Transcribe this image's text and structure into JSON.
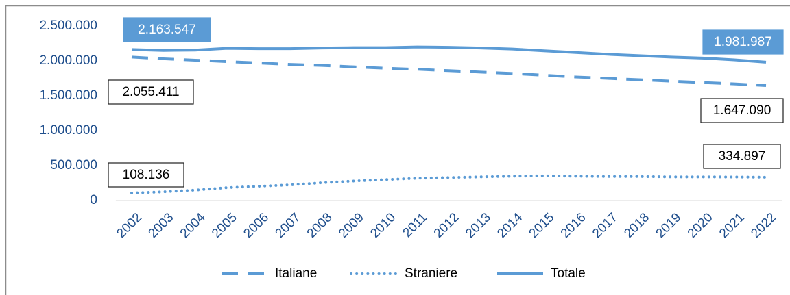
{
  "chart_data": {
    "type": "line",
    "categories": [
      "2002",
      "2003",
      "2004",
      "2005",
      "2006",
      "2007",
      "2008",
      "2009",
      "2010",
      "2011",
      "2012",
      "2013",
      "2014",
      "2015",
      "2016",
      "2017",
      "2018",
      "2019",
      "2020",
      "2021",
      "2022"
    ],
    "series": [
      {
        "name": "Italiane",
        "color": "#5b9bd5",
        "dash": "dashed",
        "values": [
          2055411,
          2030000,
          2010000,
          1990000,
          1970000,
          1950000,
          1935000,
          1915000,
          1895000,
          1880000,
          1860000,
          1840000,
          1820000,
          1795000,
          1770000,
          1750000,
          1730000,
          1710000,
          1690000,
          1670000,
          1647090
        ],
        "value_labels": [
          "2.055.411",
          null,
          null,
          null,
          null,
          null,
          null,
          null,
          null,
          null,
          null,
          null,
          null,
          null,
          null,
          null,
          null,
          null,
          null,
          null,
          "1.647.090"
        ]
      },
      {
        "name": "Straniere",
        "color": "#5b9bd5",
        "dash": "dotted",
        "values": [
          108136,
          125000,
          150000,
          185000,
          205000,
          225000,
          255000,
          280000,
          300000,
          320000,
          330000,
          340000,
          350000,
          355000,
          350000,
          345000,
          345000,
          340000,
          340000,
          338000,
          334897
        ],
        "value_labels": [
          "108.136",
          null,
          null,
          null,
          null,
          null,
          null,
          null,
          null,
          null,
          null,
          null,
          null,
          null,
          null,
          null,
          null,
          null,
          null,
          null,
          "334.897"
        ]
      },
      {
        "name": "Totale",
        "color": "#5b9bd5",
        "dash": "solid",
        "values": [
          2163547,
          2150000,
          2155000,
          2180000,
          2175000,
          2175000,
          2185000,
          2190000,
          2190000,
          2200000,
          2195000,
          2185000,
          2170000,
          2145000,
          2120000,
          2095000,
          2075000,
          2055000,
          2040000,
          2015000,
          1981987
        ],
        "value_labels": [
          "2.163.547",
          null,
          null,
          null,
          null,
          null,
          null,
          null,
          null,
          null,
          null,
          null,
          null,
          null,
          null,
          null,
          null,
          null,
          null,
          null,
          "1.981.987"
        ]
      }
    ],
    "ylim": [
      0,
      2500000
    ],
    "yticks": [
      0,
      {
        "value": 500000,
        "label": "500.000"
      },
      {
        "value": 1000000,
        "label": "1.000.000"
      },
      {
        "value": 1500000,
        "label": "1.500.000"
      },
      {
        "value": 2000000,
        "label": "2.000.000"
      },
      {
        "value": 2500000,
        "label": "2.500.000"
      }
    ],
    "legend": "bottom"
  }
}
